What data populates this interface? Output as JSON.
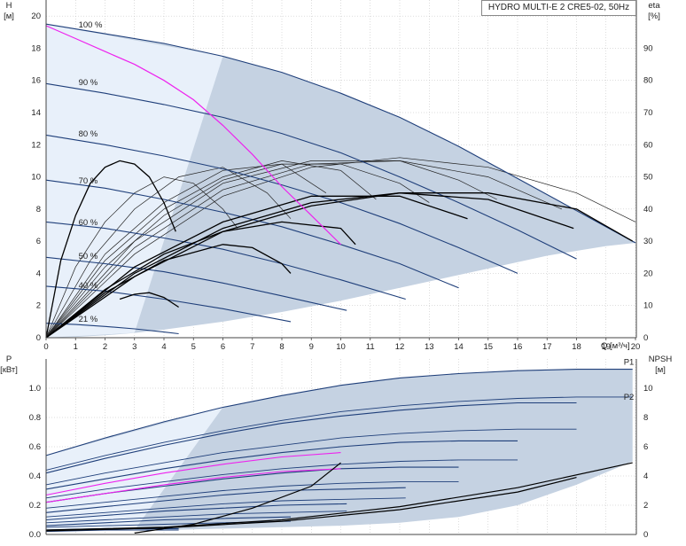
{
  "title": "HYDRO MULTI-E 2 CRE5-02, 50Hz",
  "colors": {
    "curve": "#1f3f7a",
    "eff": "#000000",
    "magenta": "#ee22ee",
    "area": "#c5d2e2",
    "area_light": "#e8f0fa",
    "grid": "#bbbbbb"
  },
  "chart_data": [
    {
      "type": "line",
      "name": "head",
      "ylabel_left": "H",
      "ylabel_left_unit": "[м]",
      "ylabel_right": "eta",
      "ylabel_right_unit": "[%]",
      "xlabel": "Q [м³/ч]",
      "xlim": [
        0,
        20
      ],
      "ylim": [
        0,
        21
      ],
      "ylim_right": [
        0,
        105
      ],
      "x_ticks": [
        0,
        1,
        2,
        3,
        4,
        5,
        6,
        7,
        8,
        9,
        10,
        11,
        12,
        13,
        14,
        15,
        16,
        17,
        18,
        19,
        20
      ],
      "x_tick_labels": [
        "0",
        "1",
        "2",
        "3",
        "4",
        "5",
        "6",
        "7",
        "8",
        "9",
        "10",
        "11",
        "12",
        "13",
        "14",
        "15",
        "16",
        "17",
        "18",
        "19",
        "20"
      ],
      "y_ticks": [
        0,
        2,
        4,
        6,
        8,
        10,
        12,
        14,
        16,
        18,
        20
      ],
      "y_right_ticks": [
        0,
        10,
        20,
        30,
        40,
        50,
        60,
        70,
        80,
        90
      ],
      "speed_labels": [
        {
          "text": "100 %",
          "x": 1.1,
          "y": 19.3
        },
        {
          "text": "90 %",
          "x": 1.1,
          "y": 15.7
        },
        {
          "text": "80 %",
          "x": 1.1,
          "y": 12.5
        },
        {
          "text": "70 %",
          "x": 1.1,
          "y": 9.6
        },
        {
          "text": "60 %",
          "x": 1.1,
          "y": 7.0
        },
        {
          "text": "50 %",
          "x": 1.1,
          "y": 4.9
        },
        {
          "text": "40 %",
          "x": 1.1,
          "y": 3.1
        },
        {
          "text": "21 %",
          "x": 1.1,
          "y": 1.0
        }
      ],
      "head_curves": [
        {
          "speed": 100,
          "x": [
            0,
            2,
            4,
            6,
            8,
            10,
            12,
            14,
            16,
            18,
            20
          ],
          "y": [
            19.5,
            18.9,
            18.3,
            17.5,
            16.5,
            15.2,
            13.7,
            11.9,
            9.9,
            7.9,
            5.9
          ]
        },
        {
          "speed": 90,
          "x": [
            0,
            2,
            4,
            6,
            8,
            10,
            12,
            14,
            16,
            18
          ],
          "y": [
            15.8,
            15.2,
            14.5,
            13.7,
            12.7,
            11.5,
            10.0,
            8.4,
            6.7,
            4.9
          ]
        },
        {
          "speed": 80,
          "x": [
            0,
            2,
            4,
            6,
            8,
            10,
            12,
            14,
            16
          ],
          "y": [
            12.6,
            12.0,
            11.3,
            10.5,
            9.5,
            8.4,
            7.1,
            5.6,
            4.0
          ]
        },
        {
          "speed": 70,
          "x": [
            0,
            2,
            4,
            6,
            8,
            10,
            12,
            14
          ],
          "y": [
            9.8,
            9.3,
            8.6,
            7.8,
            6.9,
            5.8,
            4.6,
            3.1
          ]
        },
        {
          "speed": 60,
          "x": [
            0,
            2,
            4,
            6,
            8,
            10,
            12.2
          ],
          "y": [
            7.2,
            6.8,
            6.2,
            5.5,
            4.6,
            3.6,
            2.4
          ]
        },
        {
          "speed": 50,
          "x": [
            0,
            2,
            4,
            6,
            8,
            10.2
          ],
          "y": [
            5.0,
            4.6,
            4.1,
            3.4,
            2.6,
            1.7
          ]
        },
        {
          "speed": 40,
          "x": [
            0,
            2,
            4,
            6,
            8.3
          ],
          "y": [
            3.2,
            2.9,
            2.4,
            1.8,
            1.0
          ]
        },
        {
          "speed": 21,
          "x": [
            0,
            1,
            2,
            3,
            4,
            4.5
          ],
          "y": [
            0.9,
            0.82,
            0.7,
            0.55,
            0.35,
            0.25
          ]
        }
      ],
      "limit_curve_x": [
        0,
        1,
        2,
        3,
        4,
        5,
        6,
        7,
        8,
        9,
        10,
        11,
        12,
        13,
        14,
        15,
        16,
        17,
        18,
        19,
        20
      ],
      "limit_curve_y": [
        0.0,
        0.05,
        0.15,
        0.3,
        0.5,
        0.75,
        1.0,
        1.3,
        1.6,
        1.95,
        2.3,
        2.7,
        3.1,
        3.5,
        3.9,
        4.3,
        4.7,
        5.1,
        5.4,
        5.7,
        5.9
      ],
      "magenta_curve": {
        "x": [
          0,
          1,
          2,
          3,
          4,
          5,
          6,
          7,
          8,
          9,
          10
        ],
        "y": [
          19.4,
          18.6,
          17.8,
          17.0,
          16.0,
          14.8,
          13.2,
          11.4,
          9.4,
          7.6,
          5.8
        ]
      },
      "eff_curves": [
        {
          "x": [
            0,
            0.5,
            1,
            1.5,
            2,
            2.5,
            3,
            3.5,
            4,
            4.4
          ],
          "y": [
            0,
            24,
            38,
            48,
            53,
            55,
            54,
            50,
            42,
            33
          ]
        },
        {
          "x": [
            2.5,
            3,
            3.5,
            4,
            4.5
          ],
          "y": [
            12,
            13.5,
            14,
            12.5,
            9.5
          ]
        },
        {
          "x": [
            0,
            2,
            4,
            6,
            7,
            8,
            8.3
          ],
          "y": [
            0,
            14,
            24,
            29,
            28,
            23,
            20
          ]
        },
        {
          "x": [
            0,
            2,
            4,
            6,
            8,
            10,
            10.5
          ],
          "y": [
            0,
            15,
            26,
            33,
            36,
            34,
            29
          ]
        },
        {
          "x": [
            0,
            3,
            6,
            9,
            12,
            14.3
          ],
          "y": [
            0,
            22,
            36,
            44,
            44,
            37
          ]
        },
        {
          "x": [
            0,
            3,
            6,
            9,
            12,
            15,
            17.9
          ],
          "y": [
            0,
            20,
            34,
            42,
            45,
            43,
            34
          ]
        },
        {
          "x": [
            0,
            3,
            6,
            9,
            12,
            15,
            18,
            19.9
          ],
          "y": [
            0,
            19,
            33,
            41,
            45,
            45,
            40,
            30
          ]
        }
      ],
      "thin_eff_curves": [
        {
          "x": [
            0,
            1,
            2,
            3,
            4,
            5,
            6,
            6.5
          ],
          "y": [
            0,
            22,
            36,
            45,
            50,
            48,
            40,
            34
          ]
        },
        {
          "x": [
            0,
            1.5,
            3,
            4.5,
            6,
            7.5,
            8.3
          ],
          "y": [
            0,
            24,
            40,
            50,
            53,
            45,
            37
          ]
        },
        {
          "x": [
            0,
            2,
            4,
            6,
            8,
            9.5
          ],
          "y": [
            0,
            26,
            42,
            52,
            54,
            45
          ]
        },
        {
          "x": [
            0,
            2,
            4,
            6,
            8,
            10,
            11.2
          ],
          "y": [
            0,
            24,
            40,
            50,
            55,
            52,
            43
          ]
        },
        {
          "x": [
            0,
            2,
            4,
            6,
            8,
            10,
            12,
            13
          ],
          "y": [
            0,
            22,
            38,
            49,
            54,
            54,
            48,
            42
          ]
        },
        {
          "x": [
            0,
            3,
            6,
            9,
            12,
            14,
            15.3
          ],
          "y": [
            0,
            30,
            48,
            55,
            55,
            49,
            43
          ]
        },
        {
          "x": [
            0,
            3,
            6,
            9,
            12,
            15,
            17.5
          ],
          "y": [
            0,
            28,
            46,
            54,
            55,
            50,
            40
          ]
        },
        {
          "x": [
            0,
            3,
            6,
            9,
            12,
            15,
            18,
            20
          ],
          "y": [
            0,
            26,
            44,
            53,
            56,
            53,
            45,
            36
          ]
        }
      ]
    },
    {
      "type": "line",
      "name": "power",
      "ylabel_left": "P",
      "ylabel_left_unit": "[кВт]",
      "ylabel_right": "NPSH",
      "ylabel_right_unit": "[м]",
      "xlim": [
        0,
        20
      ],
      "ylim": [
        0,
        1.2
      ],
      "ylim_right": [
        0,
        12
      ],
      "y_ticks": [
        0.0,
        0.2,
        0.4,
        0.6,
        0.8,
        1.0
      ],
      "y_tick_labels": [
        "0.0",
        "0.2",
        "0.4",
        "0.6",
        "0.8",
        "1.0"
      ],
      "y_right_ticks": [
        0,
        2,
        4,
        6,
        8,
        10
      ],
      "labels": [
        {
          "text": "P1",
          "x": 19.6,
          "y": 1.16
        },
        {
          "text": "P2",
          "x": 19.6,
          "y": 0.92
        }
      ],
      "p1_curves": [
        {
          "x": [
            0,
            2,
            4,
            6,
            8,
            10,
            12,
            14,
            16,
            18,
            19.9
          ],
          "y": [
            0.54,
            0.66,
            0.77,
            0.87,
            0.95,
            1.02,
            1.07,
            1.1,
            1.12,
            1.13,
            1.13
          ]
        },
        {
          "x": [
            0,
            2,
            4,
            6,
            8,
            10,
            12,
            14,
            16,
            18
          ],
          "y": [
            0.42,
            0.52,
            0.61,
            0.69,
            0.76,
            0.81,
            0.85,
            0.88,
            0.9,
            0.9
          ]
        },
        {
          "x": [
            0,
            2,
            4,
            6,
            8,
            10,
            12,
            14,
            16
          ],
          "y": [
            0.31,
            0.38,
            0.45,
            0.51,
            0.56,
            0.6,
            0.63,
            0.64,
            0.64
          ]
        },
        {
          "x": [
            0,
            2,
            4,
            6,
            8,
            10,
            12,
            14
          ],
          "y": [
            0.22,
            0.28,
            0.33,
            0.38,
            0.42,
            0.45,
            0.46,
            0.46
          ]
        },
        {
          "x": [
            0,
            2,
            4,
            6,
            8,
            10,
            12.2
          ],
          "y": [
            0.15,
            0.19,
            0.23,
            0.27,
            0.3,
            0.31,
            0.32
          ]
        },
        {
          "x": [
            0,
            2,
            4,
            6,
            8,
            10.2
          ],
          "y": [
            0.1,
            0.13,
            0.16,
            0.18,
            0.2,
            0.21
          ]
        },
        {
          "x": [
            0,
            2,
            4,
            6,
            8.3
          ],
          "y": [
            0.06,
            0.08,
            0.1,
            0.11,
            0.12
          ]
        },
        {
          "x": [
            0,
            2,
            4,
            4.5
          ],
          "y": [
            0.03,
            0.04,
            0.04,
            0.04
          ]
        }
      ],
      "p2_curves": [
        {
          "x": [
            0,
            2,
            4,
            6,
            8,
            10,
            12,
            14,
            16,
            18,
            19.9
          ],
          "y": [
            0.44,
            0.54,
            0.63,
            0.71,
            0.78,
            0.84,
            0.88,
            0.91,
            0.93,
            0.94,
            0.94
          ]
        },
        {
          "x": [
            0,
            2,
            4,
            6,
            8,
            10,
            12,
            14,
            16,
            18
          ],
          "y": [
            0.34,
            0.42,
            0.49,
            0.56,
            0.61,
            0.66,
            0.69,
            0.71,
            0.72,
            0.72
          ]
        },
        {
          "x": [
            0,
            2,
            4,
            6,
            8,
            10,
            12,
            14,
            16
          ],
          "y": [
            0.25,
            0.31,
            0.36,
            0.41,
            0.45,
            0.48,
            0.5,
            0.51,
            0.51
          ]
        },
        {
          "x": [
            0,
            2,
            4,
            6,
            8,
            10,
            12,
            14
          ],
          "y": [
            0.18,
            0.22,
            0.26,
            0.3,
            0.33,
            0.35,
            0.36,
            0.36
          ]
        },
        {
          "x": [
            0,
            2,
            4,
            6,
            8,
            10,
            12.2
          ],
          "y": [
            0.12,
            0.15,
            0.18,
            0.21,
            0.23,
            0.24,
            0.25
          ]
        },
        {
          "x": [
            0,
            2,
            4,
            6,
            8,
            10.2
          ],
          "y": [
            0.08,
            0.1,
            0.12,
            0.14,
            0.15,
            0.16
          ]
        },
        {
          "x": [
            0,
            2,
            4,
            6,
            8.3
          ],
          "y": [
            0.05,
            0.06,
            0.07,
            0.08,
            0.09
          ]
        },
        {
          "x": [
            0,
            2,
            4,
            4.5
          ],
          "y": [
            0.02,
            0.03,
            0.03,
            0.03
          ]
        }
      ],
      "magenta_p1": {
        "x": [
          0,
          2,
          4,
          6,
          8,
          10
        ],
        "y": [
          0.27,
          0.35,
          0.42,
          0.48,
          0.53,
          0.56
        ]
      },
      "magenta_p2": {
        "x": [
          0,
          2,
          4,
          6,
          8,
          10
        ],
        "y": [
          0.22,
          0.28,
          0.34,
          0.39,
          0.43,
          0.45
        ]
      },
      "npsh_curves": [
        {
          "x": [
            0,
            4,
            8,
            12,
            16,
            19.9
          ],
          "y": [
            0.3,
            0.5,
            1.0,
            1.9,
            3.2,
            4.9
          ]
        },
        {
          "x": [
            0,
            4,
            8,
            12,
            16,
            18
          ],
          "y": [
            0.25,
            0.45,
            0.9,
            1.7,
            2.9,
            3.9
          ]
        },
        {
          "x": [
            3,
            5,
            7,
            9,
            10
          ],
          "y": [
            0.1,
            0.7,
            1.8,
            3.3,
            4.9
          ]
        }
      ],
      "area_top_x": [
        0,
        2,
        4,
        6,
        8,
        10,
        12,
        14,
        16,
        18,
        19.9
      ],
      "area_top_y": [
        0.54,
        0.66,
        0.77,
        0.87,
        0.95,
        1.02,
        1.07,
        1.1,
        1.12,
        1.13,
        1.13
      ],
      "area_bottom_y": [
        0.02,
        0.03,
        0.03,
        0.04,
        0.05,
        0.06,
        0.08,
        0.12,
        0.2,
        0.34,
        0.5
      ]
    }
  ]
}
